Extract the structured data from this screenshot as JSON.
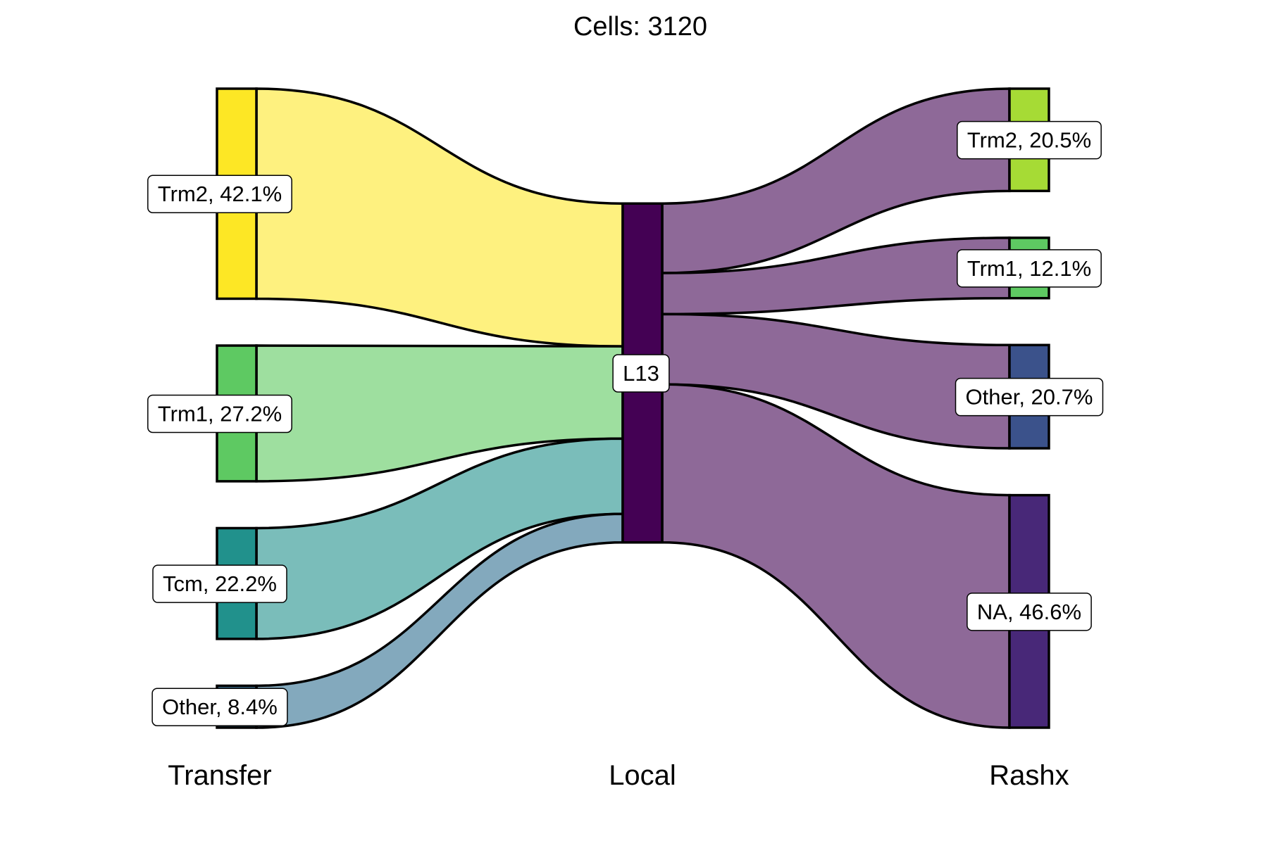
{
  "chart_data": {
    "type": "sankey",
    "title": "Cells:  3120",
    "total_cells": 3120,
    "axes": [
      {
        "id": "transfer",
        "name": "Transfer",
        "nodes": [
          {
            "id": "t_trm2",
            "category": "Trm2",
            "percent": 42.1,
            "label": "Trm2, 42.1%",
            "color": "#FDE725",
            "flow_color": "#FEF17F"
          },
          {
            "id": "t_trm1",
            "category": "Trm1",
            "percent": 27.2,
            "label": "Trm1, 27.2%",
            "color": "#5EC962",
            "flow_color": "#9EDF9F"
          },
          {
            "id": "t_tcm",
            "category": "Tcm",
            "percent": 22.2,
            "label": "Tcm, 22.2%",
            "color": "#21918C",
            "flow_color": "#7ABDBA"
          },
          {
            "id": "t_other",
            "category": "Other",
            "percent": 8.4,
            "label": "Other, 8.4%",
            "color": "#3B6E8C",
            "flow_color": "#83A9BD"
          }
        ]
      },
      {
        "id": "local",
        "name": "Local",
        "nodes": [
          {
            "id": "l_l13",
            "category": "L13",
            "percent": 100.0,
            "label": "L13",
            "color": "#440154",
            "flow_color": "#8E6998"
          }
        ]
      },
      {
        "id": "rashx",
        "name": "Rashx",
        "nodes": [
          {
            "id": "r_trm2",
            "category": "Trm2",
            "percent": 20.5,
            "label": "Trm2, 20.5%",
            "color": "#A6DB35",
            "flow_color": "#8E6998"
          },
          {
            "id": "r_trm1",
            "category": "Trm1",
            "percent": 12.1,
            "label": "Trm1, 12.1%",
            "color": "#5EC962",
            "flow_color": "#8E6998"
          },
          {
            "id": "r_other",
            "category": "Other",
            "percent": 20.7,
            "label": "Other, 20.7%",
            "color": "#3B528B",
            "flow_color": "#8E6998"
          },
          {
            "id": "r_na",
            "category": "NA",
            "percent": 46.6,
            "label": "NA, 46.6%",
            "color": "#482878",
            "flow_color": "#8E6998"
          }
        ]
      }
    ],
    "flows": [
      {
        "source": "t_trm2",
        "target": "l_l13",
        "percent": 42.1
      },
      {
        "source": "t_trm1",
        "target": "l_l13",
        "percent": 27.2
      },
      {
        "source": "t_tcm",
        "target": "l_l13",
        "percent": 22.2
      },
      {
        "source": "t_other",
        "target": "l_l13",
        "percent": 8.4
      },
      {
        "source": "l_l13",
        "target": "r_trm2",
        "percent": 20.5
      },
      {
        "source": "l_l13",
        "target": "r_trm1",
        "percent": 12.1
      },
      {
        "source": "l_l13",
        "target": "r_other",
        "percent": 20.7
      },
      {
        "source": "l_l13",
        "target": "r_na",
        "percent": 46.6
      }
    ]
  }
}
